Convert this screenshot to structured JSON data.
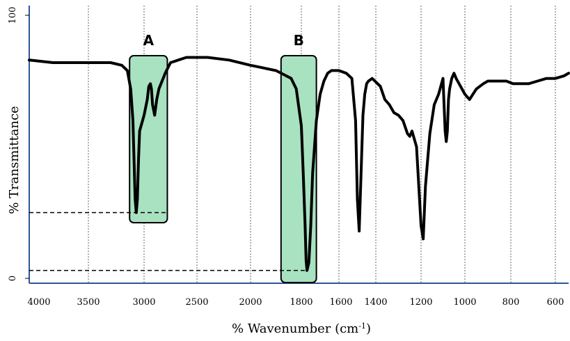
{
  "chart_data": {
    "type": "line",
    "title": "",
    "xlabel_main": "% Wavenumber (cm",
    "xlabel_sup": "-1",
    "xlabel_close": ")",
    "ylabel": "% Transmittance",
    "x_ticks": [
      "4000",
      "3500",
      "3000",
      "2500",
      "2000",
      "1800",
      "1600",
      "1400",
      "1200",
      "1000",
      "800",
      "600"
    ],
    "y_ticks": [
      "100",
      "0"
    ],
    "ylim": [
      0,
      100
    ],
    "grid": {
      "vertical": true,
      "horizontal": false
    },
    "series": [
      {
        "x": [
          4000,
          3800,
          3700,
          3600,
          3500,
          3400,
          3300,
          3200,
          3150,
          3120,
          3100,
          3090,
          3080,
          3070,
          3060,
          3050,
          3040,
          3000,
          2970,
          2955,
          2940,
          2930,
          2920,
          2900,
          2880,
          2860,
          2800,
          2750,
          2600,
          2400,
          2200,
          2000,
          1950,
          1900,
          1860,
          1840,
          1820,
          1800,
          1790,
          1780,
          1775,
          1770,
          1760,
          1750,
          1740,
          1720,
          1700,
          1680,
          1660,
          1640,
          1600,
          1560,
          1530,
          1510,
          1500,
          1490,
          1480,
          1470,
          1460,
          1450,
          1440,
          1420,
          1380,
          1360,
          1340,
          1320,
          1300,
          1280,
          1260,
          1250,
          1240,
          1220,
          1200,
          1190,
          1180,
          1160,
          1140,
          1120,
          1100,
          1090,
          1085,
          1080,
          1075,
          1070,
          1060,
          1050,
          1040,
          1000,
          980,
          950,
          920,
          900,
          880,
          850,
          820,
          790,
          760,
          720,
          680,
          640,
          600,
          560,
          540
        ],
        "values": [
          83,
          82,
          82,
          82,
          82,
          82,
          82,
          81,
          79,
          72,
          60,
          45,
          30,
          25,
          30,
          45,
          56,
          62,
          68,
          73,
          74,
          72,
          66,
          62,
          68,
          72,
          78,
          82,
          84,
          84,
          83,
          81,
          80,
          79,
          77,
          76,
          72,
          58,
          40,
          20,
          7,
          3,
          6,
          20,
          40,
          60,
          70,
          75,
          78,
          79,
          79,
          78,
          76,
          60,
          30,
          18,
          40,
          62,
          70,
          74,
          75,
          76,
          73,
          68,
          66,
          63,
          62,
          60,
          55,
          54,
          56,
          50,
          20,
          15,
          35,
          55,
          66,
          70,
          76,
          56,
          52,
          56,
          68,
          72,
          76,
          78,
          76,
          70,
          68,
          72,
          74,
          75,
          75,
          75,
          75,
          74,
          74,
          74,
          75,
          76,
          76,
          77,
          78
        ]
      }
    ],
    "boxes": [
      {
        "label": "A",
        "x_range": [
          3130,
          2780
        ]
      },
      {
        "label": "B",
        "x_range": [
          1880,
          1720
        ]
      }
    ],
    "reference_lines": [
      {
        "y": 25,
        "to_x": 2780
      },
      {
        "y": 3,
        "to_x": 1770
      }
    ],
    "colors": {
      "box_fill": "#a8e2c1",
      "axis_frame": "#2f5597",
      "grid": "#666666",
      "line": "#000000"
    }
  }
}
